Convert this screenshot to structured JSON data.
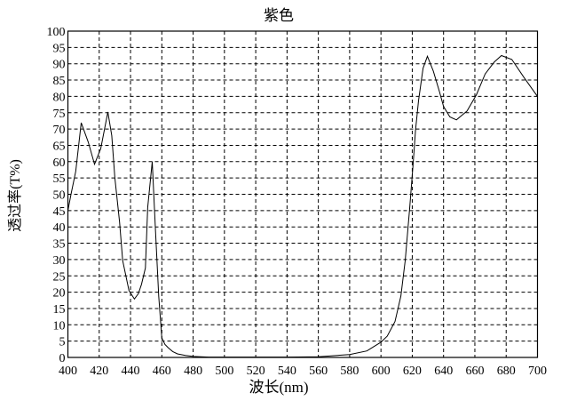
{
  "chart_data": {
    "type": "line",
    "title": "紫色",
    "xlabel": "波长(nm)",
    "ylabel": "透过率(T%)",
    "xlim": [
      400,
      700
    ],
    "ylim": [
      0,
      100
    ],
    "xticks": [
      400,
      420,
      440,
      460,
      480,
      500,
      520,
      540,
      560,
      580,
      600,
      620,
      640,
      660,
      680,
      700
    ],
    "yticks": [
      0,
      5,
      10,
      15,
      20,
      25,
      30,
      35,
      40,
      45,
      50,
      55,
      60,
      65,
      70,
      75,
      80,
      85,
      90,
      95,
      100
    ],
    "grid": true,
    "grid_style": "dashed",
    "line_color": "#000000",
    "series": [
      {
        "x": [
          400,
          402,
          405,
          408.5,
          413,
          417,
          421,
          425.5,
          428,
          430,
          433,
          435,
          439,
          442.5,
          445,
          447,
          449.5,
          451,
          453.9,
          456,
          458,
          460,
          462,
          464,
          467,
          470,
          475,
          480,
          490,
          500,
          520,
          540,
          560,
          580,
          591,
          600,
          604,
          609,
          612.7,
          615.5,
          618.4,
          620.6,
          622.1,
          624,
          626.9,
          629.7,
          633.5,
          637.3,
          640,
          644,
          648.2,
          655,
          661,
          666.6,
          672.3,
          677,
          683.6,
          691.2,
          700
        ],
        "y": [
          45,
          50,
          57,
          71.9,
          66,
          59.2,
          64,
          75.2,
          68,
          55,
          41.5,
          29.7,
          20.5,
          17.9,
          19.5,
          22.4,
          27.4,
          46,
          60,
          38.7,
          18.8,
          6,
          4,
          3,
          1.8,
          1.1,
          0.6,
          0.3,
          0.1,
          0.1,
          0.1,
          0.1,
          0.2,
          0.9,
          2,
          4.7,
          6.5,
          11,
          18.8,
          29.7,
          46,
          59.6,
          69.6,
          78.7,
          88.6,
          92.3,
          87.7,
          81.6,
          76.9,
          73.7,
          72.8,
          75.5,
          80.5,
          86.9,
          90.5,
          92.5,
          91.3,
          85.9,
          80
        ]
      }
    ]
  }
}
